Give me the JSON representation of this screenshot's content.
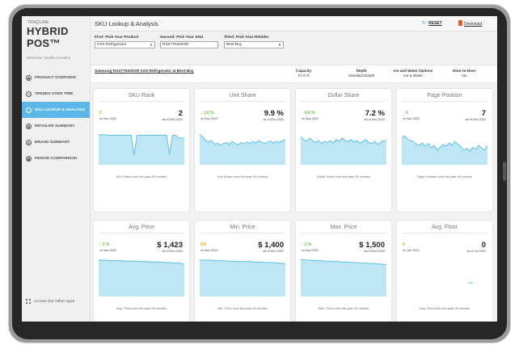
{
  "brand": {
    "small": "TRAQLINE",
    "big": "HYBRID POS™"
  },
  "welcome": "Welcome, Noelle Carvalho",
  "nav": [
    {
      "label": "PRODUCT OVERVIEW",
      "icon": "overview-icon",
      "glyph": "◉",
      "active": false
    },
    {
      "label": "TRENDS OVER TIME",
      "icon": "trend-icon",
      "glyph": "↗",
      "active": false
    },
    {
      "label": "SKU LOOKUP & ANALYSIS",
      "icon": "sku-icon",
      "glyph": "…",
      "active": true
    },
    {
      "label": "RETAILER SUMMARY",
      "icon": "retailer-icon",
      "glyph": "▤",
      "active": false
    },
    {
      "label": "BRAND SUMMARY",
      "icon": "brand-icon",
      "glyph": "◎",
      "active": false
    },
    {
      "label": "PERIOD COMPARISON",
      "icon": "period-icon",
      "glyph": "▦",
      "active": false
    }
  ],
  "other_apps": "Access Our Other Apps",
  "header": {
    "title": "SKU Lookup & Analysis",
    "reset": "RESET",
    "download": "Download"
  },
  "filters": {
    "product": {
      "label": "First: Pick Your Product",
      "value": "SXS Refrigerator"
    },
    "sku": {
      "label": "Second: Pick Your SKU",
      "value": "RS27T5200SR"
    },
    "retailer": {
      "label": "Third: Pick Your Retailer",
      "value": "Best Buy"
    }
  },
  "product": {
    "name": "Samsung RS27T5200SR SXS Refrigerator at Best Buy",
    "specs": [
      {
        "label": "Capacity",
        "value": "27.0 cf"
      },
      {
        "label": "Depth",
        "value": "Standard Depth"
      },
      {
        "label": "Ice and Water Options",
        "value": "Ice & Water"
      },
      {
        "label": "Door-in-Door",
        "value": "No"
      }
    ]
  },
  "colors": {
    "accent": "#5cb6e8",
    "spark_fill": "#bfe6f5",
    "spark_line": "#5cc0e5",
    "up": "#6cc04a",
    "neutral": "#e8a91f"
  },
  "cards": [
    {
      "title": "SKU Rank",
      "change": "0",
      "dir": "neutral",
      "vs": "vs Nov 2022",
      "value": "2",
      "asof": "as of Dec 2022",
      "caption": "SKU Rank over the past 30 months",
      "series": [
        62,
        62,
        62,
        61,
        61,
        61,
        61,
        61,
        61,
        61,
        61,
        61,
        20,
        61,
        61,
        61,
        61,
        61,
        61,
        61,
        61,
        61,
        61,
        61,
        22,
        61,
        61,
        55,
        55,
        55
      ]
    },
    {
      "title": "Unit Share",
      "change": "↑ 1.0 %",
      "dir": "up",
      "vs": "vs Nov 2022",
      "value": "9.9 %",
      "asof": "as of Dec 2022",
      "caption": "Unit Share over the past 30 months",
      "series": [
        62,
        58,
        50,
        47,
        50,
        42,
        45,
        40,
        44,
        46,
        42,
        48,
        44,
        41,
        46,
        43,
        47,
        44,
        48,
        45,
        50,
        46,
        44,
        47,
        49,
        45,
        48,
        46,
        50,
        52
      ]
    },
    {
      "title": "Dollar Share",
      "change": "↑ 0.6 %",
      "dir": "up",
      "vs": "vs Nov 2022",
      "value": "7.2 %",
      "asof": "as of Dec 2022",
      "caption": "Dollar Share over the past 30 months",
      "series": [
        58,
        52,
        48,
        55,
        50,
        46,
        50,
        44,
        48,
        46,
        50,
        45,
        52,
        48,
        55,
        50,
        48,
        52,
        47,
        50,
        45,
        48,
        52,
        46,
        44,
        48,
        42,
        46,
        50,
        48
      ]
    },
    {
      "title": "Page Position",
      "change": "↓ 0",
      "dir": "up",
      "vs": "vs Nov 2022",
      "value": "7",
      "asof": "as of Dec 2022",
      "caption": "Page Position over the past 30 months",
      "series": [
        55,
        60,
        52,
        50,
        48,
        42,
        40,
        45,
        38,
        44,
        35,
        40,
        30,
        36,
        42,
        38,
        45,
        40,
        48,
        42,
        38,
        30,
        34,
        28,
        36,
        32,
        40,
        35,
        30,
        40
      ]
    },
    {
      "title": "Avg. Price",
      "change": "↑ 2 %",
      "dir": "up",
      "vs": "vs Nov 2022",
      "value": "$ 1,423",
      "asof": "as of Dec 2022",
      "caption": "Avg. Price over the past 30 months",
      "series": [
        75,
        75,
        75,
        75,
        74,
        74,
        74,
        74,
        74,
        73,
        73,
        73,
        73,
        73,
        72,
        72,
        72,
        72,
        71,
        71,
        71,
        71,
        70,
        70,
        70,
        69,
        69,
        69,
        68,
        67
      ]
    },
    {
      "title": "Min. Price",
      "change": "0%",
      "dir": "neutral",
      "vs": "vs Nov 2022",
      "value": "$ 1,400",
      "asof": "as of Dec 2022",
      "caption": "Min. Price over the past 30 months",
      "series": [
        75,
        75,
        75,
        75,
        75,
        74,
        74,
        74,
        74,
        73,
        73,
        73,
        73,
        72,
        72,
        72,
        72,
        72,
        71,
        71,
        71,
        71,
        70,
        70,
        70,
        70,
        69,
        69,
        68,
        68
      ]
    },
    {
      "title": "Max. Price",
      "change": "↑ 2 %",
      "dir": "up",
      "vs": "vs Nov 2022",
      "value": "$ 1,500",
      "asof": "as of Dec 2022",
      "caption": "Max. Price over the past 30 months",
      "series": [
        76,
        76,
        75,
        75,
        75,
        74,
        74,
        74,
        73,
        73,
        73,
        72,
        72,
        72,
        71,
        71,
        71,
        70,
        70,
        70,
        69,
        69,
        69,
        68,
        68,
        68,
        67,
        67,
        66,
        66
      ]
    },
    {
      "title": "Avg. Floor",
      "change": "0",
      "dir": "neutral",
      "vs": "vs Jun 2022",
      "value": "0",
      "asof": "as of Jul 2022",
      "caption": "Avg. Floor over the past 30 months",
      "series": []
    }
  ]
}
